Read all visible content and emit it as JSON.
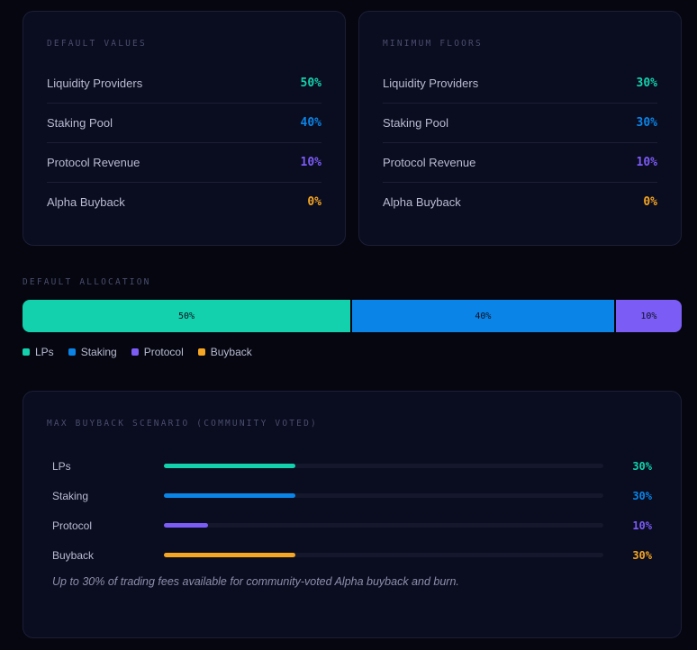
{
  "colors": {
    "lp": "#13d1ad",
    "staking": "#0a84e6",
    "protocol": "#7b5cf5",
    "buyback": "#f5a623"
  },
  "default_values": {
    "title": "DEFAULT VALUES",
    "rows": [
      {
        "label": "Liquidity Providers",
        "value": "50%"
      },
      {
        "label": "Staking Pool",
        "value": "40%"
      },
      {
        "label": "Protocol Revenue",
        "value": "10%"
      },
      {
        "label": "Alpha Buyback",
        "value": "0%"
      }
    ]
  },
  "minimum_floors": {
    "title": "MINIMUM FLOORS",
    "rows": [
      {
        "label": "Liquidity Providers",
        "value": "30%"
      },
      {
        "label": "Staking Pool",
        "value": "30%"
      },
      {
        "label": "Protocol Revenue",
        "value": "10%"
      },
      {
        "label": "Alpha Buyback",
        "value": "0%"
      }
    ]
  },
  "default_allocation": {
    "title": "DEFAULT ALLOCATION",
    "segments": [
      {
        "label": "50%",
        "value": 50
      },
      {
        "label": "40%",
        "value": 40
      },
      {
        "label": "10%",
        "value": 10
      }
    ],
    "legend": [
      "LPs",
      "Staking",
      "Protocol",
      "Buyback"
    ]
  },
  "scenario": {
    "title": "MAX BUYBACK SCENARIO (COMMUNITY VOTED)",
    "rows": [
      {
        "label": "LPs",
        "value": "30%",
        "fraction": 0.3
      },
      {
        "label": "Staking",
        "value": "30%",
        "fraction": 0.3
      },
      {
        "label": "Protocol",
        "value": "10%",
        "fraction": 0.1
      },
      {
        "label": "Buyback",
        "value": "30%",
        "fraction": 0.3
      }
    ],
    "note": "Up to 30% of trading fees available for community-voted Alpha buyback and burn."
  }
}
